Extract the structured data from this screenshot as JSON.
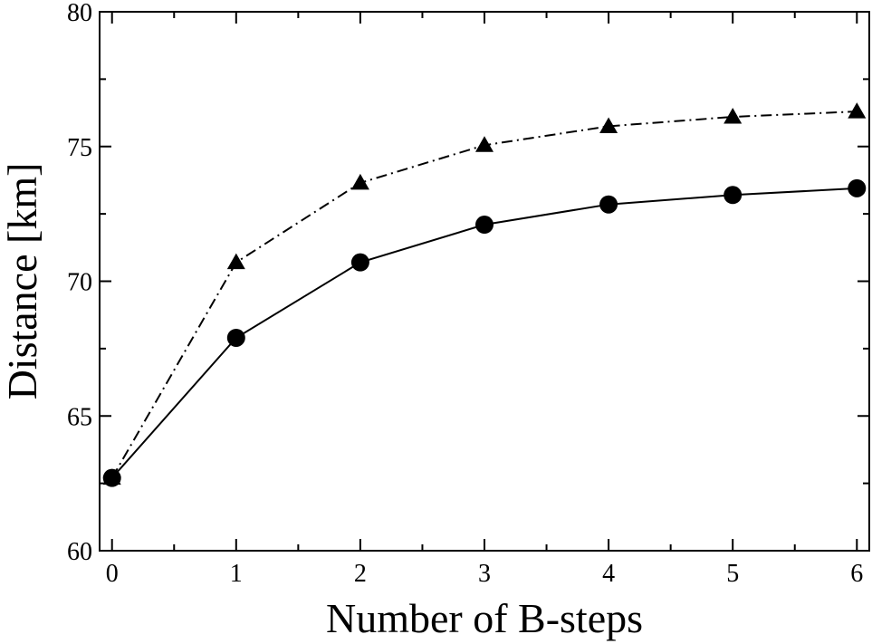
{
  "chart_data": {
    "type": "line",
    "title": "",
    "xlabel": "Number of B-steps",
    "ylabel": "Distance [km]",
    "xlim": [
      -0.1,
      6.1
    ],
    "ylim": [
      60,
      80
    ],
    "x_ticks": [
      0,
      1,
      2,
      3,
      4,
      5,
      6
    ],
    "y_ticks": [
      60,
      65,
      70,
      75,
      80
    ],
    "grid": false,
    "legend": "none",
    "x": [
      0,
      1,
      2,
      3,
      4,
      5,
      6
    ],
    "series": [
      {
        "marker": "circle",
        "line_style": "solid",
        "color": "#000000",
        "values": [
          62.7,
          67.9,
          70.7,
          72.1,
          72.85,
          73.2,
          73.45
        ]
      },
      {
        "marker": "triangle",
        "line_style": "dash-dot",
        "color": "#000000",
        "values": [
          62.7,
          70.7,
          73.65,
          75.05,
          75.75,
          76.1,
          76.3
        ]
      }
    ]
  }
}
